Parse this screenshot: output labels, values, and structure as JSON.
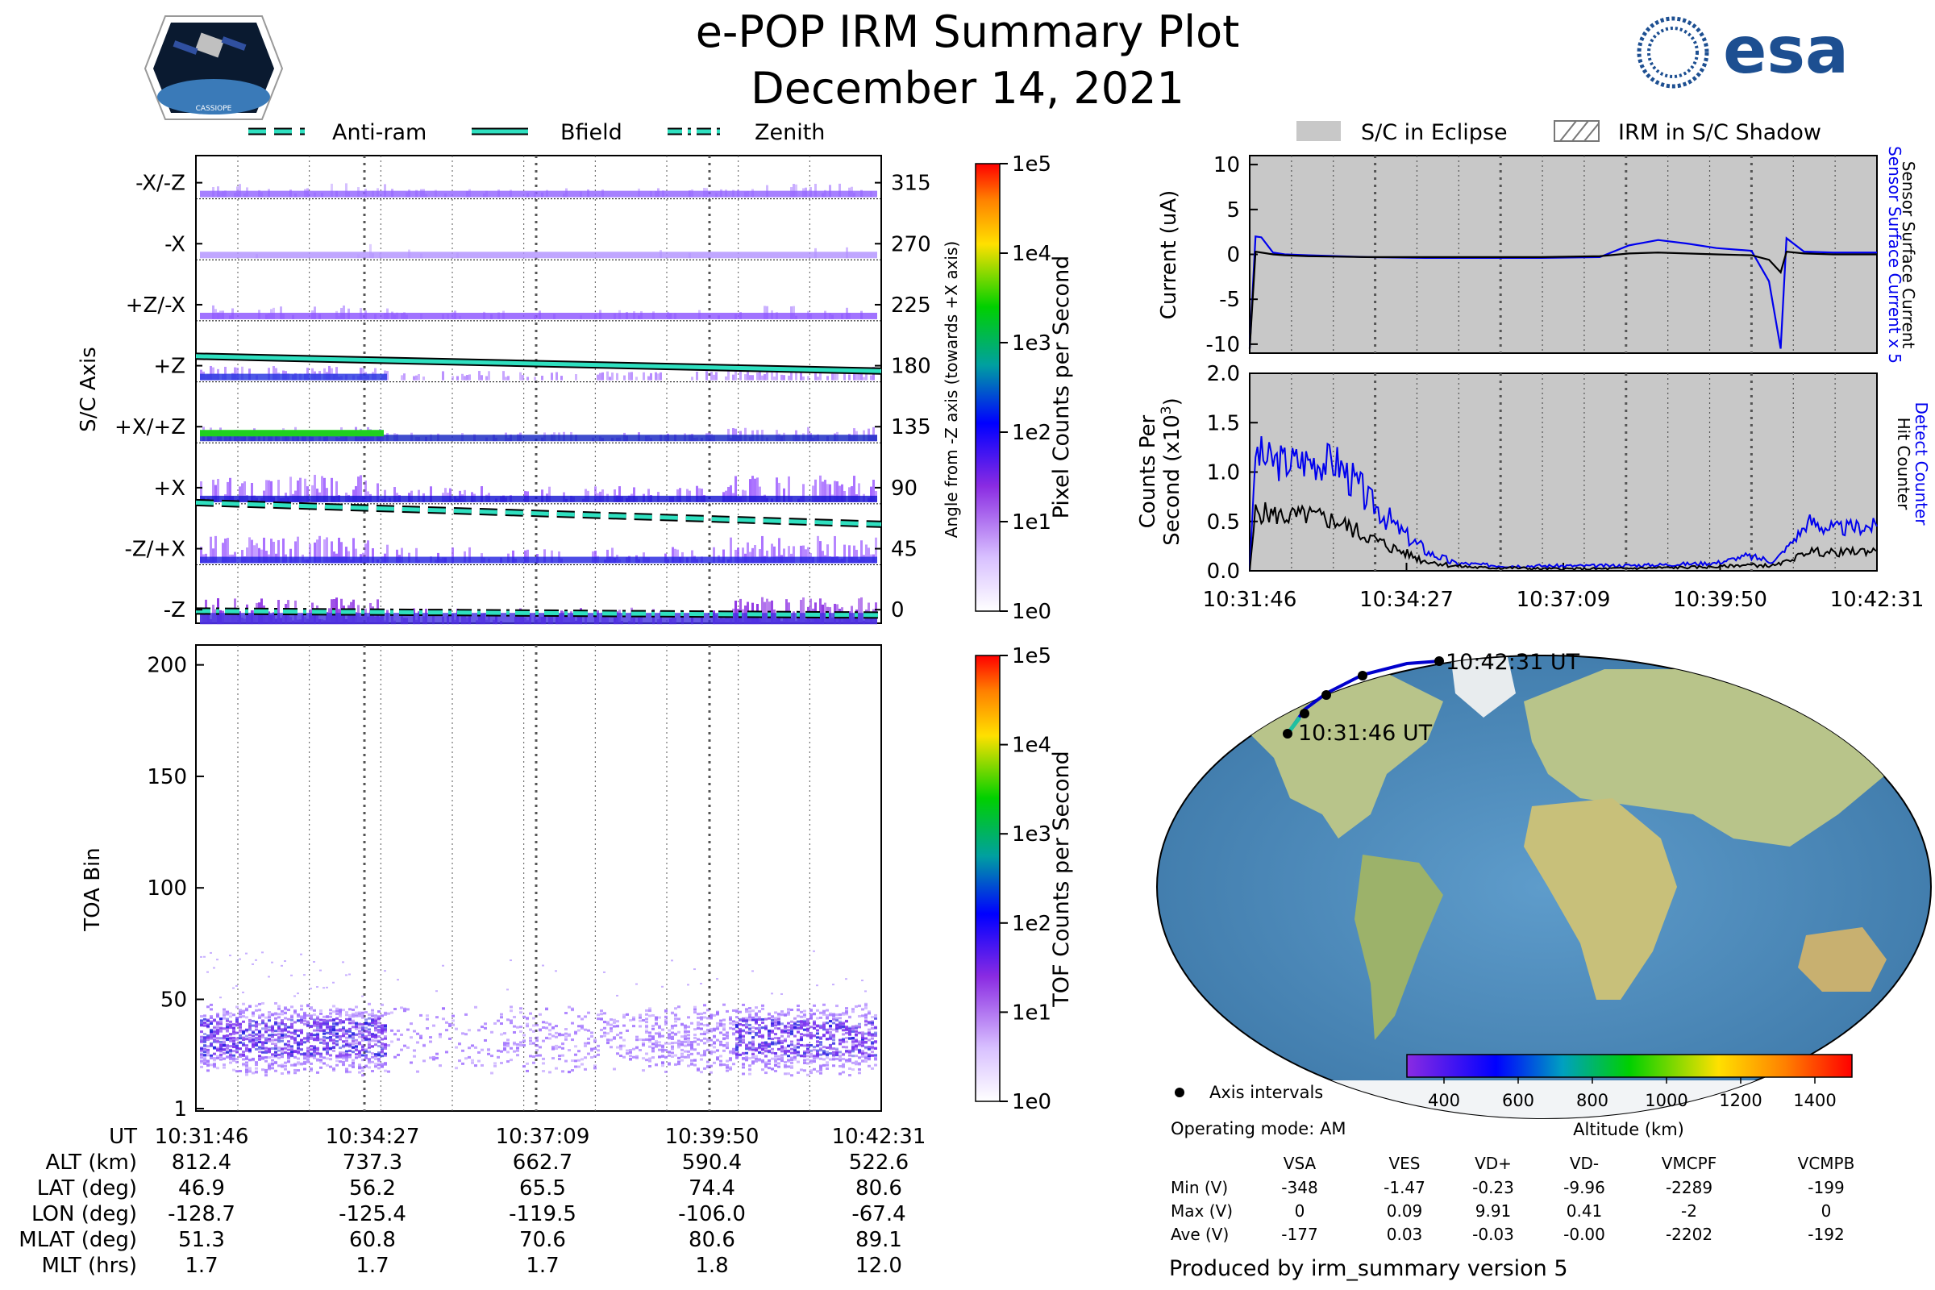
{
  "header": {
    "title": "e-POP IRM Summary Plot",
    "date": "December 14, 2021",
    "mission_logo_text": "CASSIOPE",
    "agency_logo_text": "esa"
  },
  "legend_lines": [
    "Anti-ram",
    "Bfield",
    "Zenith"
  ],
  "legend_shading": [
    "S/C in Eclipse",
    "IRM in S/C Shadow"
  ],
  "sc_axis_panel": {
    "ylabel": "S/C Axis",
    "y2label": "Angle from -Z axis (towards +X axis)",
    "axis_labels": [
      "-Z",
      "-Z/+X",
      "+X",
      "+X/+Z",
      "+Z",
      "+Z/-X",
      "-X",
      "-X/-Z"
    ],
    "angle_ticks": [
      "0",
      "45",
      "90",
      "135",
      "180",
      "225",
      "270",
      "315"
    ],
    "colorbar_label": "Pixel Counts per Second",
    "colorbar_ticks": [
      "1e0",
      "1e1",
      "1e2",
      "1e3",
      "1e4",
      "1e5"
    ]
  },
  "toa_panel": {
    "ylabel": "TOA Bin",
    "yticks": [
      "1",
      "50",
      "100",
      "150",
      "200"
    ],
    "colorbar_label": "TOF Counts per Second",
    "colorbar_ticks": [
      "1e0",
      "1e1",
      "1e2",
      "1e3",
      "1e4",
      "1e5"
    ]
  },
  "ephemeris_table": {
    "rows": [
      {
        "label": "UT",
        "values": [
          "10:31:46",
          "10:34:27",
          "10:37:09",
          "10:39:50",
          "10:42:31"
        ]
      },
      {
        "label": "ALT (km)",
        "values": [
          "812.4",
          "737.3",
          "662.7",
          "590.4",
          "522.6"
        ]
      },
      {
        "label": "LAT (deg)",
        "values": [
          "46.9",
          "56.2",
          "65.5",
          "74.4",
          "80.6"
        ]
      },
      {
        "label": "LON (deg)",
        "values": [
          "-128.7",
          "-125.4",
          "-119.5",
          "-106.0",
          "-67.4"
        ]
      },
      {
        "label": "MLAT (deg)",
        "values": [
          "51.3",
          "60.8",
          "70.6",
          "80.6",
          "89.1"
        ]
      },
      {
        "label": "MLT (hrs)",
        "values": [
          "1.7",
          "1.7",
          "1.7",
          "1.8",
          "12.0"
        ]
      }
    ]
  },
  "current_panel": {
    "ylabel": "Current (uA)",
    "yticks": [
      "-10",
      "-5",
      "0",
      "5",
      "10"
    ],
    "right_label_blue": "Sensor Surface Current x 5",
    "right_label_black": "Sensor Surface Current"
  },
  "counts_panel": {
    "ylabel_line1": "Counts Per",
    "ylabel_line2": "Second (x10",
    "ylabel_sup": "3",
    "ylabel_close": ")",
    "yticks": [
      "0.0",
      "0.5",
      "1.0",
      "1.5",
      "2.0"
    ],
    "xticks": [
      "10:31:46",
      "10:34:27",
      "10:37:09",
      "10:39:50",
      "10:42:31"
    ],
    "right_label_blue": "Detect Counter",
    "right_label_black": "Hit Counter"
  },
  "map_panel": {
    "start_label": "10:31:46 UT",
    "end_label": "10:42:31 UT",
    "axis_intervals_label": "Axis intervals",
    "operating_mode": "Operating mode: AM",
    "altitude_label": "Altitude (km)",
    "altitude_ticks": [
      "400",
      "600",
      "800",
      "1000",
      "1200",
      "1400"
    ]
  },
  "voltage_table": {
    "columns": [
      "VSA",
      "VES",
      "VD+",
      "VD-",
      "VMCPF",
      "VCMPB"
    ],
    "rows": [
      {
        "label": "Min (V)",
        "values": [
          "-348",
          "-1.47",
          "-0.23",
          "-9.96",
          "-2289",
          "-199"
        ]
      },
      {
        "label": "Max (V)",
        "values": [
          "0",
          "0.09",
          "9.91",
          "0.41",
          "-2",
          "0"
        ]
      },
      {
        "label": "Ave (V)",
        "values": [
          "-177",
          "0.03",
          "-0.03",
          "-0.00",
          "-2202",
          "-192"
        ]
      }
    ]
  },
  "footer": "Produced by irm_summary version 5",
  "colors": {
    "cyan": "#2fe0c0",
    "blue": "#0000ee",
    "purple": "#8a2be2",
    "eclipse_gray": "#c8c8c8",
    "ocean": "#4f8fc0",
    "land": "#b8c48a"
  },
  "chart_data": [
    {
      "type": "heatmap",
      "name": "S/C axis pixel counts",
      "x": [
        "10:31:46",
        "10:34:27",
        "10:37:09",
        "10:39:50",
        "10:42:31"
      ],
      "y_angle_deg": [
        0,
        45,
        90,
        135,
        180,
        225,
        270,
        315
      ],
      "ylim": [
        -10,
        335
      ],
      "color_scale": "log",
      "clim": [
        1,
        100000
      ],
      "lines": [
        {
          "name": "Bfield",
          "angle_start": 187,
          "angle_end": 176
        },
        {
          "name": "Anti-ram",
          "angle_start": 79,
          "angle_end": 63
        },
        {
          "name": "Zenith",
          "angle_start": -1,
          "angle_end": -4
        }
      ]
    },
    {
      "type": "heatmap",
      "name": "TOA bin TOF counts",
      "x": [
        "10:31:46",
        "10:34:27",
        "10:37:09",
        "10:39:50",
        "10:42:31"
      ],
      "ylim": [
        1,
        210
      ],
      "color_scale": "log",
      "clim": [
        1,
        100000
      ],
      "dense_band_bins": [
        20,
        45
      ]
    },
    {
      "type": "line",
      "name": "Sensor surface current",
      "x_minutes": [
        0,
        0.1,
        0.2,
        0.4,
        0.6,
        1,
        2,
        3,
        4,
        5,
        6,
        6.5,
        7,
        7.5,
        8,
        8.6,
        8.9,
        9.1,
        9.2,
        9.5,
        10,
        10.75
      ],
      "ylim": [
        -11,
        11
      ],
      "series": [
        {
          "name": "Sensor Surface Current x 5",
          "values": [
            -10.5,
            2,
            1.9,
            0.2,
            0,
            -0.1,
            -0.3,
            -0.4,
            -0.4,
            -0.4,
            -0.3,
            1,
            1.6,
            1.2,
            0.7,
            0.4,
            -3,
            -10.5,
            1.8,
            0.3,
            0.2,
            0.2
          ]
        },
        {
          "name": "Sensor Surface Current",
          "values": [
            -10.5,
            0.3,
            0.2,
            0,
            -0.1,
            -0.2,
            -0.3,
            -0.3,
            -0.3,
            -0.3,
            -0.2,
            0.1,
            0.2,
            0.1,
            0,
            -0.1,
            -0.6,
            -2,
            0.3,
            0.1,
            0,
            0
          ]
        }
      ]
    },
    {
      "type": "line",
      "name": "Counts per second",
      "x_minutes": [
        0,
        0.1,
        0.3,
        0.6,
        1,
        1.5,
        2,
        2.5,
        3,
        3.5,
        4,
        4.5,
        5,
        6,
        7,
        8,
        8.5,
        9,
        9.3,
        9.6,
        10,
        10.5,
        10.75
      ],
      "ylim": [
        0,
        2.0
      ],
      "series": [
        {
          "name": "Detect Counter",
          "values": [
            0,
            1.2,
            1.12,
            1.1,
            1.12,
            1.1,
            0.75,
            0.45,
            0.2,
            0.08,
            0.06,
            0.05,
            0.05,
            0.05,
            0.06,
            0.08,
            0.15,
            0.1,
            0.3,
            0.5,
            0.42,
            0.45,
            0.45
          ]
        },
        {
          "name": "Hit Counter",
          "values": [
            0,
            0.6,
            0.58,
            0.55,
            0.56,
            0.5,
            0.35,
            0.22,
            0.1,
            0.05,
            0.03,
            0.03,
            0.02,
            0.02,
            0.03,
            0.04,
            0.06,
            0.05,
            0.12,
            0.2,
            0.18,
            0.2,
            0.2
          ]
        }
      ]
    }
  ]
}
